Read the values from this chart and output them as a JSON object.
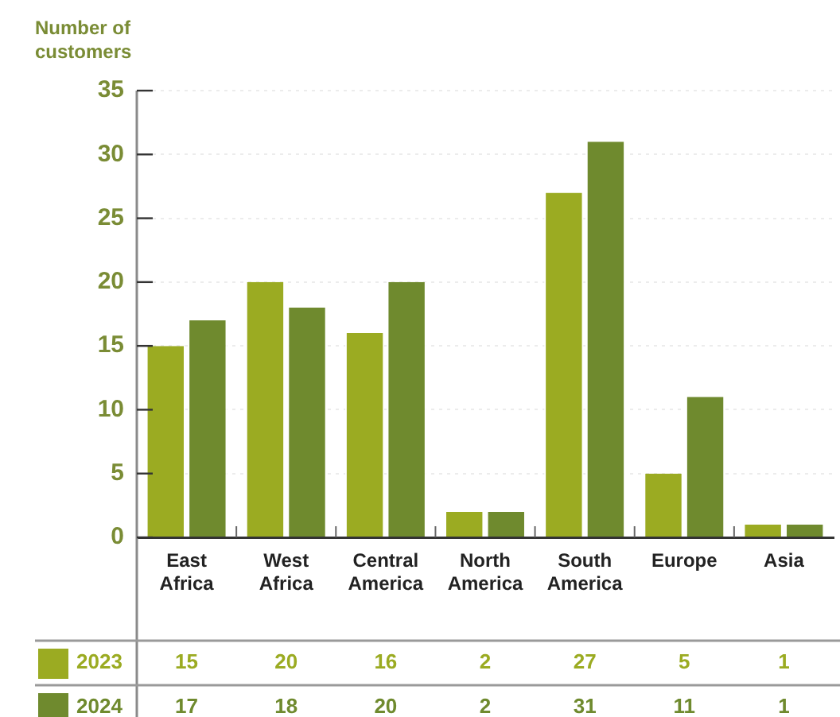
{
  "chart_data": {
    "type": "bar",
    "ylabel": "Number of customers",
    "categories": [
      "East Africa",
      "West Africa",
      "Central America",
      "North America",
      "South America",
      "Europe",
      "Asia"
    ],
    "series": [
      {
        "name": "2023",
        "color": "#9bab22",
        "values": [
          15,
          20,
          16,
          2,
          27,
          5,
          1
        ]
      },
      {
        "name": "2024",
        "color": "#6f8a2e",
        "values": [
          17,
          18,
          20,
          2,
          31,
          11,
          1
        ]
      }
    ],
    "ylim": [
      0,
      35
    ],
    "yticks": [
      0,
      5,
      10,
      15,
      20,
      25,
      30,
      35
    ],
    "grid": "y",
    "data_labels": true,
    "legend": "bottom left"
  }
}
